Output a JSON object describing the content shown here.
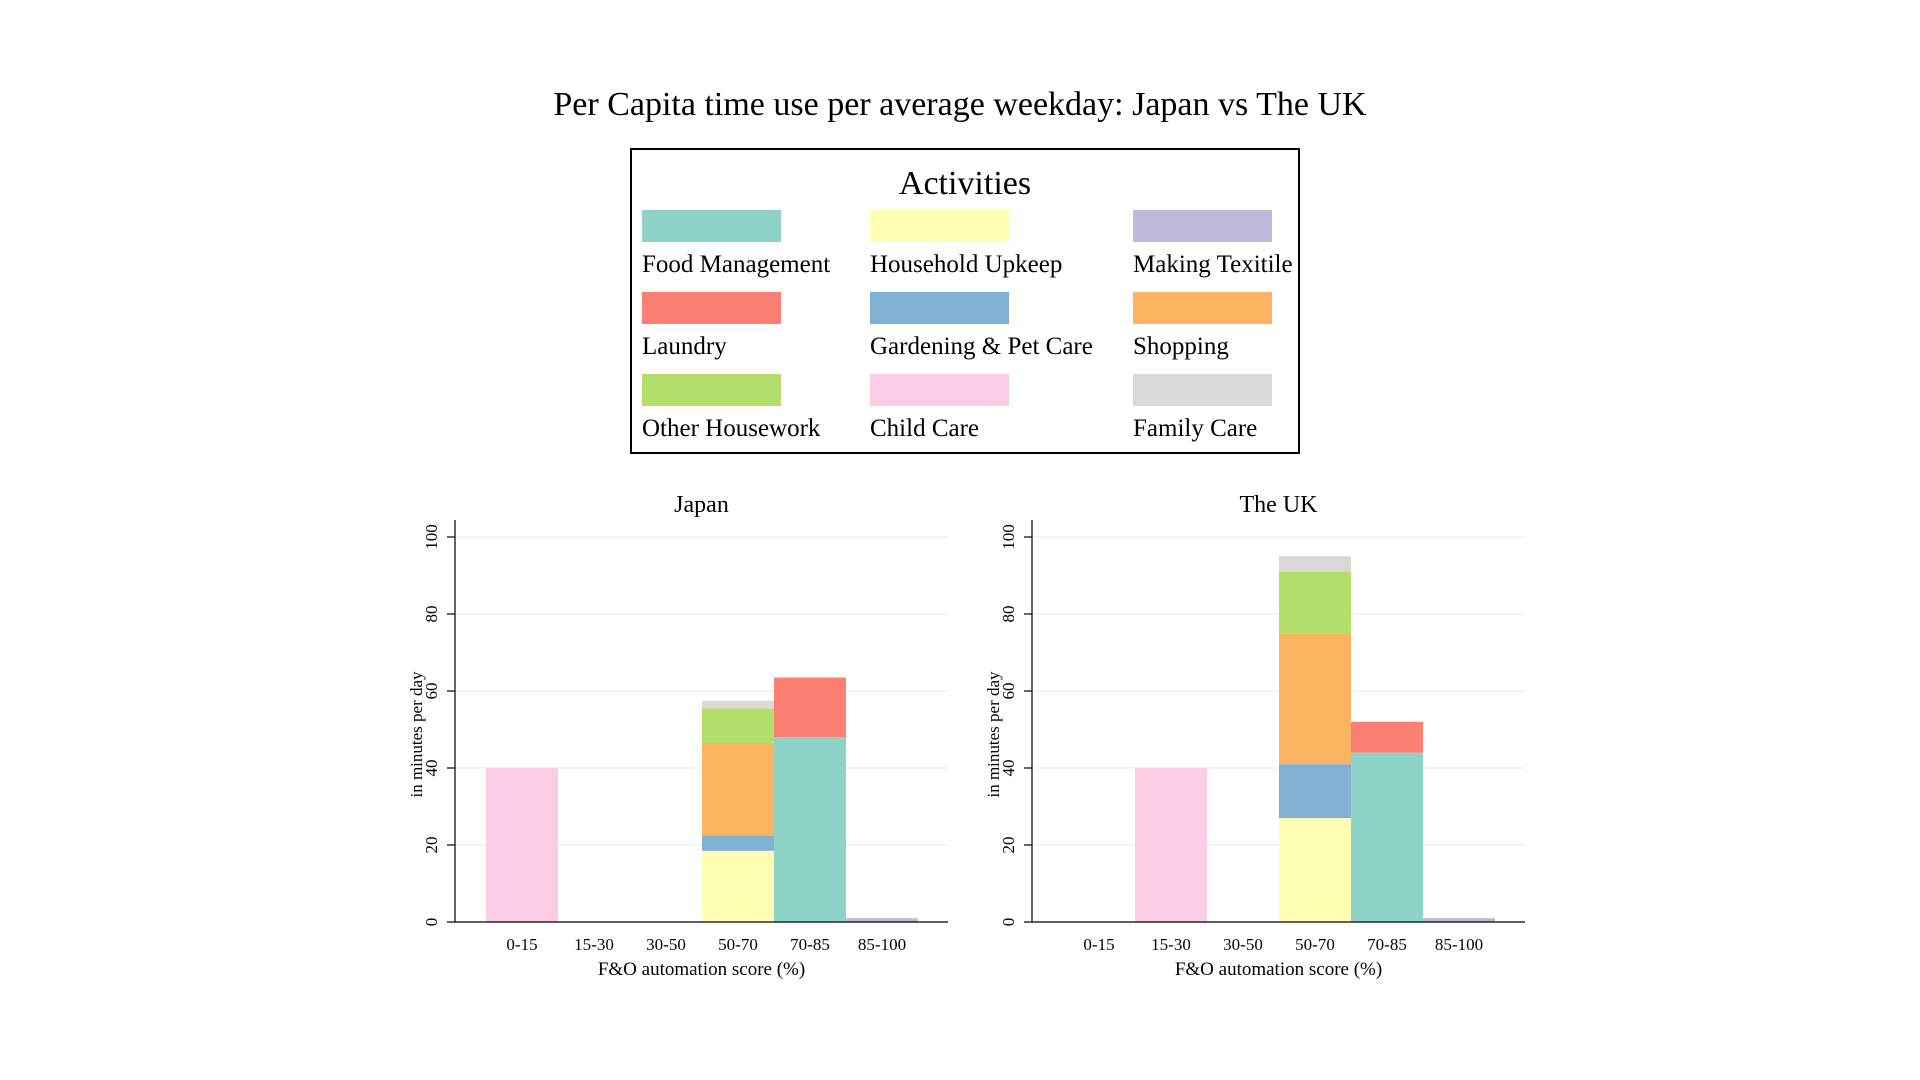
{
  "title": "Per Capita time use per average weekday: Japan vs The UK",
  "legend": {
    "title": "Activities",
    "items": [
      {
        "label": "Food Management",
        "color": "#8dd3c7"
      },
      {
        "label": "Household Upkeep",
        "color": "#ffffb3"
      },
      {
        "label": "Making Texitile",
        "color": "#bebada"
      },
      {
        "label": "Laundry",
        "color": "#fb8072"
      },
      {
        "label": "Gardening & Pet Care",
        "color": "#80b1d3"
      },
      {
        "label": "Shopping",
        "color": "#fdb462"
      },
      {
        "label": "Other Housework",
        "color": "#b3de69"
      },
      {
        "label": "Child Care",
        "color": "#fccde5"
      },
      {
        "label": "Family Care",
        "color": "#d9d9d9"
      }
    ]
  },
  "chart_data": [
    {
      "type": "bar",
      "stacked": true,
      "title": "Japan",
      "xlabel": "F&O automation score (%)",
      "ylabel": "in minutes per day",
      "ylim": [
        0,
        100
      ],
      "yticks": [
        0,
        20,
        40,
        60,
        80,
        100
      ],
      "grid": true,
      "categories": [
        "0-15",
        "15-30",
        "30-50",
        "50-70",
        "70-85",
        "85-100"
      ],
      "series": [
        {
          "name": "Food Management",
          "values": [
            0,
            0,
            0,
            0,
            48,
            0
          ]
        },
        {
          "name": "Household Upkeep",
          "values": [
            0,
            0,
            0,
            18.5,
            0,
            0
          ]
        },
        {
          "name": "Making Texitile",
          "values": [
            0,
            0,
            0,
            0,
            0,
            1
          ]
        },
        {
          "name": "Laundry",
          "values": [
            0,
            0,
            0,
            0,
            15.5,
            0
          ]
        },
        {
          "name": "Gardening & Pet Care",
          "values": [
            0,
            0,
            0,
            4,
            0,
            0
          ]
        },
        {
          "name": "Shopping",
          "values": [
            0,
            0,
            0,
            24,
            0,
            0
          ]
        },
        {
          "name": "Other Housework",
          "values": [
            0,
            0,
            0,
            9,
            0,
            0
          ]
        },
        {
          "name": "Child Care",
          "values": [
            40,
            0,
            0,
            0,
            0,
            0
          ]
        },
        {
          "name": "Family Care",
          "values": [
            0,
            0,
            0,
            2,
            0,
            0
          ]
        }
      ]
    },
    {
      "type": "bar",
      "stacked": true,
      "title": "The UK",
      "xlabel": "F&O automation score (%)",
      "ylabel": "in minutes per day",
      "ylim": [
        0,
        100
      ],
      "yticks": [
        0,
        20,
        40,
        60,
        80,
        100
      ],
      "grid": true,
      "categories": [
        "0-15",
        "15-30",
        "30-50",
        "50-70",
        "70-85",
        "85-100"
      ],
      "series": [
        {
          "name": "Food Management",
          "values": [
            0,
            0,
            0,
            0,
            44,
            0
          ]
        },
        {
          "name": "Household Upkeep",
          "values": [
            0,
            0,
            0,
            27,
            0,
            0
          ]
        },
        {
          "name": "Making Texitile",
          "values": [
            0,
            0,
            0,
            0,
            0,
            1
          ]
        },
        {
          "name": "Laundry",
          "values": [
            0,
            0,
            0,
            0,
            8,
            0
          ]
        },
        {
          "name": "Gardening & Pet Care",
          "values": [
            0,
            0,
            0,
            14,
            0,
            0
          ]
        },
        {
          "name": "Shopping",
          "values": [
            0,
            0,
            0,
            34,
            0,
            0
          ]
        },
        {
          "name": "Other Housework",
          "values": [
            0,
            0,
            0,
            16,
            0,
            0
          ]
        },
        {
          "name": "Child Care",
          "values": [
            0,
            40,
            0,
            0,
            0,
            0
          ]
        },
        {
          "name": "Family Care",
          "values": [
            0,
            0,
            0,
            4,
            0,
            0
          ]
        }
      ]
    }
  ]
}
